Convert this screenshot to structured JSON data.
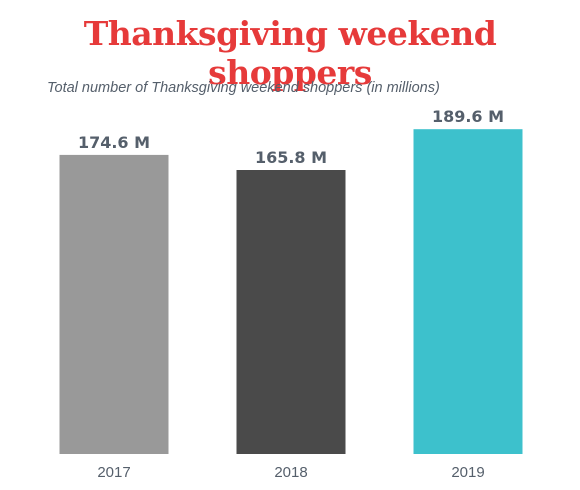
{
  "colors": {
    "title": "#e63a3a",
    "text": "#555f6b",
    "bar_2017": "#999999",
    "bar_2018": "#4a4a4a",
    "bar_2019": "#3dc1cc"
  },
  "chart_data": {
    "type": "bar",
    "title": "Thanksgiving weekend shoppers",
    "subtitle": "Total number of Thanksgiving weekend shoppers (in millions)",
    "xlabel": "",
    "ylabel": "",
    "categories": [
      "2017",
      "2018",
      "2019"
    ],
    "values": [
      174.6,
      165.8,
      189.6
    ],
    "value_labels": [
      "174.6 M",
      "165.8 M",
      "189.6 M"
    ],
    "unit": "M",
    "ylim": [
      0,
      195
    ],
    "grid": false,
    "legend": "none"
  }
}
